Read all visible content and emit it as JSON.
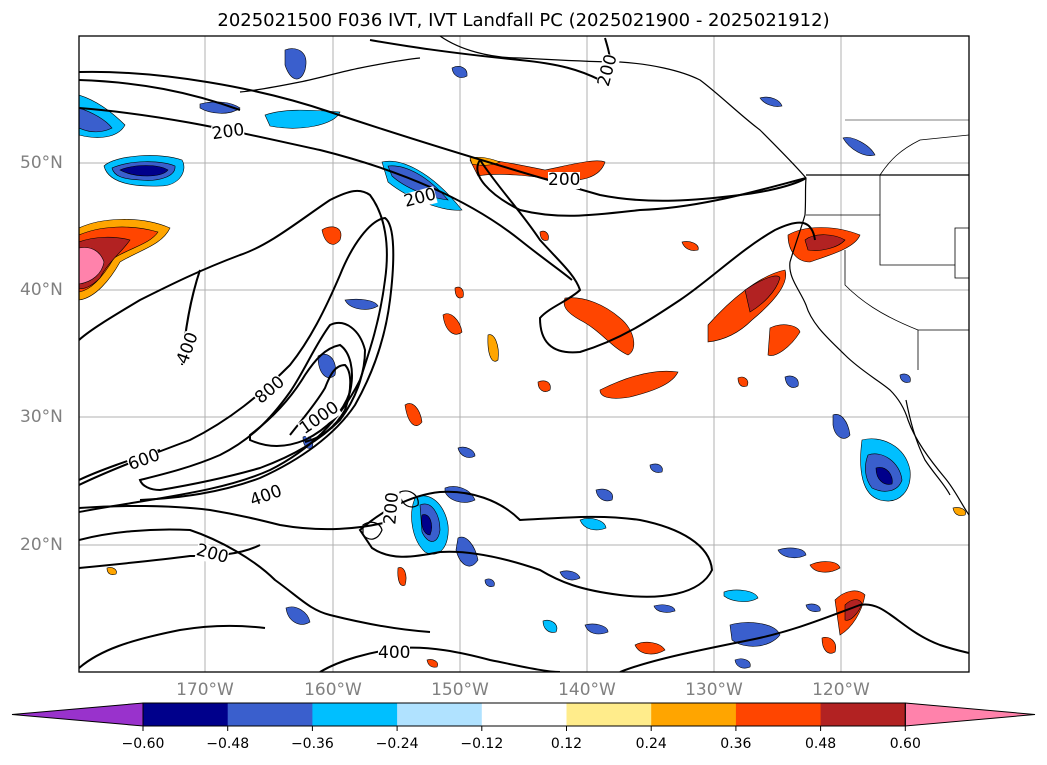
{
  "title": "2025021500 F036 IVT, IVT Landfall PC (2025021900 - 2025021912)",
  "axes": {
    "lat_ticks": [
      "50°N",
      "40°N",
      "30°N",
      "20°N"
    ],
    "lon_ticks": [
      "170°W",
      "160°W",
      "150°W",
      "140°W",
      "130°W",
      "120°W"
    ]
  },
  "contour_labels": [
    "200",
    "200",
    "200",
    "200",
    "200",
    "200",
    "400",
    "400",
    "400",
    "600",
    "800",
    "1000"
  ],
  "colorbar": {
    "ticks": [
      "−0.60",
      "−0.48",
      "−0.36",
      "−0.24",
      "−0.12",
      "0.12",
      "0.24",
      "0.36",
      "0.48",
      "0.60"
    ],
    "colors": [
      "#9932cc",
      "#00008b",
      "#3a5fcd",
      "#00bfff",
      "#b0e2ff",
      "#ffffff",
      "#ffec8b",
      "#ffa500",
      "#ff4500",
      "#b22222",
      "#ff82ab"
    ]
  }
}
